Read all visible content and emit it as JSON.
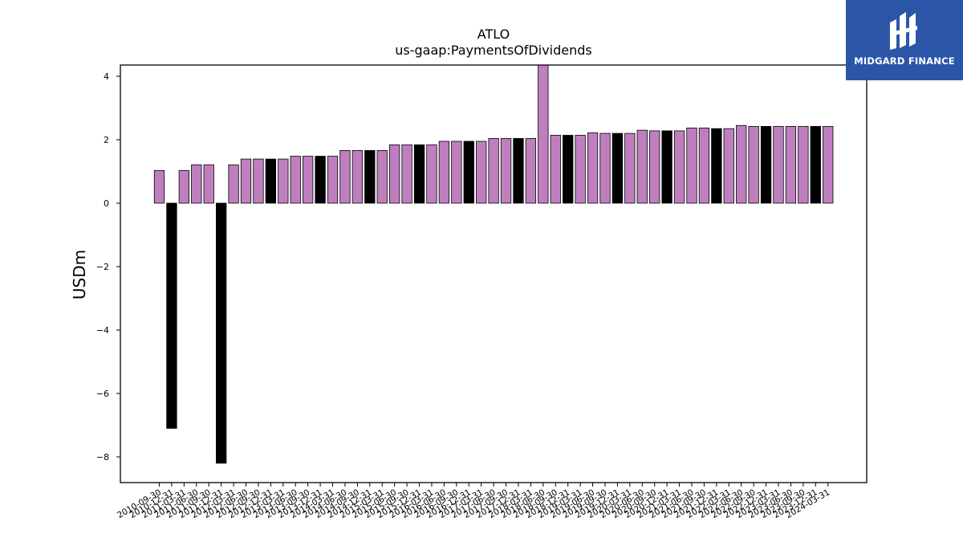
{
  "brand": {
    "name": "MIDGARD FINANCE",
    "bg_color": "#2b56a8"
  },
  "chart_data": {
    "type": "bar",
    "title": "ATLO",
    "subtitle": "us-gaap:PaymentsOfDividends",
    "xlabel": "",
    "ylabel": "USDm",
    "ylim": [
      -8.8,
      4.35
    ],
    "yticks": [
      4,
      2,
      0,
      -2,
      -4,
      -6,
      -8
    ],
    "grid": false,
    "colors": {
      "default": "#bf7fbf",
      "q4": "#000000"
    },
    "categories": [
      "2010-09-30",
      "2010-12-31",
      "2011-03-31",
      "2011-06-30",
      "2011-09-30",
      "2011-12-31",
      "2012-03-31",
      "2012-06-30",
      "2012-09-30",
      "2012-12-31",
      "2013-03-31",
      "2013-06-30",
      "2013-09-30",
      "2013-12-31",
      "2014-03-31",
      "2014-06-30",
      "2014-09-30",
      "2014-12-31",
      "2015-03-31",
      "2015-06-30",
      "2015-09-30",
      "2015-12-31",
      "2016-03-31",
      "2016-06-30",
      "2016-09-30",
      "2016-12-31",
      "2017-03-31",
      "2017-06-30",
      "2017-09-30",
      "2017-12-31",
      "2018-03-31",
      "2018-06-30",
      "2018-09-30",
      "2018-12-31",
      "2019-03-31",
      "2019-06-30",
      "2019-09-30",
      "2019-12-31",
      "2020-03-31",
      "2020-06-30",
      "2020-09-30",
      "2020-12-31",
      "2021-03-31",
      "2021-06-30",
      "2021-09-30",
      "2021-12-31",
      "2022-03-31",
      "2022-06-30",
      "2022-09-30",
      "2022-12-31",
      "2023-03-31",
      "2023-06-30",
      "2023-09-30",
      "2023-12-31",
      "2024-03-31"
    ],
    "values": [
      1.03,
      -7.1,
      1.03,
      1.21,
      1.21,
      -8.2,
      1.21,
      1.39,
      1.39,
      1.39,
      1.39,
      1.48,
      1.48,
      1.48,
      1.48,
      1.66,
      1.66,
      1.66,
      1.66,
      1.84,
      1.84,
      1.84,
      1.84,
      1.95,
      1.95,
      1.95,
      1.95,
      2.04,
      2.04,
      2.04,
      2.04,
      4.4,
      2.14,
      2.14,
      2.14,
      2.22,
      2.2,
      2.2,
      2.2,
      2.3,
      2.28,
      2.28,
      2.28,
      2.37,
      2.37,
      2.35,
      2.35,
      2.45,
      2.42,
      2.42,
      2.42,
      2.42,
      2.42,
      2.42,
      2.42
    ],
    "highlight": [
      false,
      true,
      false,
      false,
      false,
      true,
      false,
      false,
      false,
      true,
      false,
      false,
      false,
      true,
      false,
      false,
      false,
      true,
      false,
      false,
      false,
      true,
      false,
      false,
      false,
      true,
      false,
      false,
      false,
      true,
      false,
      false,
      false,
      true,
      false,
      false,
      false,
      true,
      false,
      false,
      false,
      true,
      false,
      false,
      false,
      true,
      false,
      false,
      false,
      true,
      false,
      false,
      false,
      true,
      false
    ]
  }
}
